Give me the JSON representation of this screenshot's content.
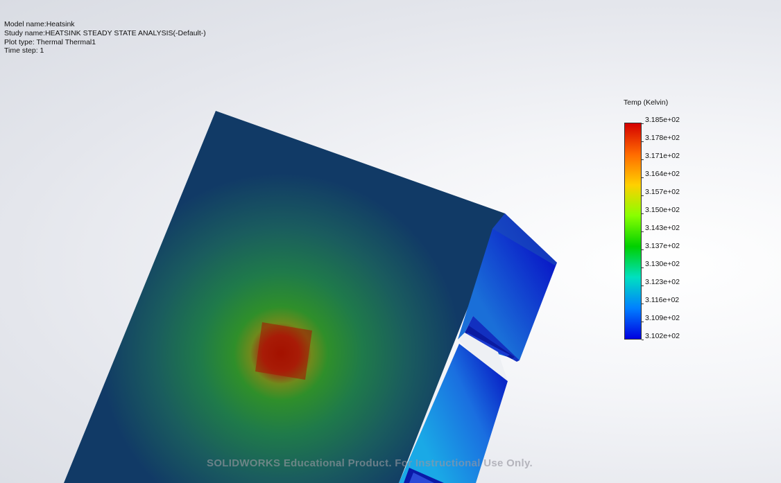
{
  "plot_info": {
    "model_name": "Model name:Heatsink",
    "study_name": "Study name:HEATSINK STEADY STATE ANALYSIS(-Default-)",
    "plot_type": "Plot type: Thermal Thermal1",
    "time_step": "Time step: 1"
  },
  "legend": {
    "title": "Temp (Kelvin)",
    "values": [
      "3.185e+02",
      "3.178e+02",
      "3.171e+02",
      "3.164e+02",
      "3.157e+02",
      "3.150e+02",
      "3.143e+02",
      "3.137e+02",
      "3.130e+02",
      "3.123e+02",
      "3.116e+02",
      "3.109e+02",
      "3.102e+02"
    ],
    "colors": [
      "#d40000",
      "#ff6a00",
      "#ffd000",
      "#88ff00",
      "#00d000",
      "#00e0c0",
      "#0080ff",
      "#0000e0"
    ]
  },
  "watermark": "SOLIDWORKS Educational Product. For Instructional Use Only."
}
